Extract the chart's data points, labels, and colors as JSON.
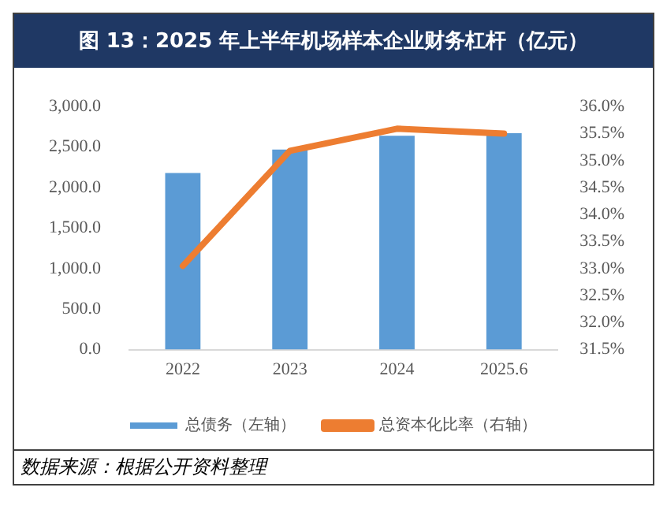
{
  "chart_data": {
    "type": "bar",
    "title": "图 13：2025 年上半年机场样本企业财务杠杆（亿元）",
    "categories": [
      "2022",
      "2023",
      "2024",
      "2025.6"
    ],
    "series": [
      {
        "name": "总债务（左轴）",
        "color": "#5b9bd5",
        "values": [
          2180,
          2470,
          2640,
          2670
        ]
      },
      {
        "name": "总资本化比率（右轴）",
        "type": "line",
        "axis": "y2",
        "color": "#ed7d31",
        "values": [
          33.05,
          35.18,
          35.59,
          35.5
        ]
      }
    ],
    "ylim": [
      0,
      3000
    ],
    "yticks": [
      {
        "value": 0,
        "label": "0.0"
      },
      {
        "value": 500,
        "label": "500.0"
      },
      {
        "value": 1000,
        "label": "1,000.0"
      },
      {
        "value": 1500,
        "label": "1,500.0"
      },
      {
        "value": 2000,
        "label": "2,000.0"
      },
      {
        "value": 2500,
        "label": "2,500.0"
      },
      {
        "value": 3000,
        "label": "3,000.0"
      }
    ],
    "y2lim": [
      31.5,
      36
    ],
    "y2ticks": [
      {
        "value": 31.5,
        "label": "31.5%"
      },
      {
        "value": 32,
        "label": "32.0%"
      },
      {
        "value": 32.5,
        "label": "32.5%"
      },
      {
        "value": 33,
        "label": "33.0%"
      },
      {
        "value": 33.5,
        "label": "33.5%"
      },
      {
        "value": 34,
        "label": "34.0%"
      },
      {
        "value": 34.5,
        "label": "34.5%"
      },
      {
        "value": 35,
        "label": "35.0%"
      },
      {
        "value": 35.5,
        "label": "35.5%"
      },
      {
        "value": 36,
        "label": "36.0%"
      }
    ],
    "legend": "bottom",
    "grid": false,
    "marker": "none",
    "annotations": [
      "数据来源：根据公开资料整理"
    ]
  }
}
